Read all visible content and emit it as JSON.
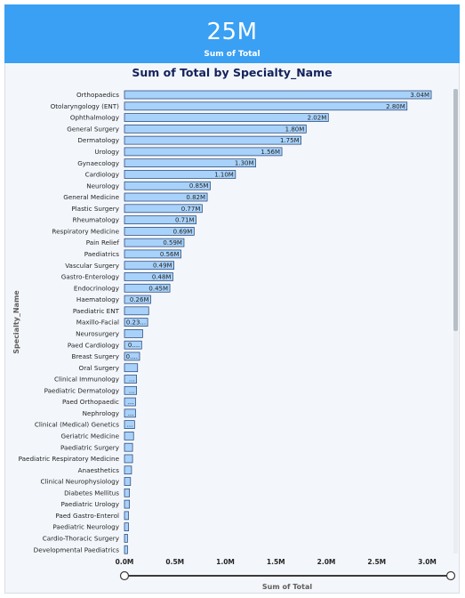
{
  "kpi": {
    "value": "25M",
    "label": "Sum of Total"
  },
  "colors": {
    "kpi_bg": "#3aa0f3",
    "bar_fill": "#a8d2fa",
    "bar_stroke": "#1f3b6e",
    "title": "#14225a"
  },
  "chart_data": {
    "type": "bar",
    "orientation": "horizontal",
    "title": "Sum of Total by Specialty_Name",
    "xlabel": "Sum of Total",
    "ylabel": "Specialty_Name",
    "xlim": [
      0,
      3.2
    ],
    "x_ticks": [
      "0.0M",
      "0.5M",
      "1.0M",
      "1.5M",
      "2.0M",
      "2.5M",
      "3.0M"
    ],
    "grid": false,
    "categories": [
      "Orthopaedics",
      "Otolaryngology (ENT)",
      "Ophthalmology",
      "General Surgery",
      "Dermatology",
      "Urology",
      "Gynaecology",
      "Cardiology",
      "Neurology",
      "General Medicine",
      "Plastic Surgery",
      "Rheumatology",
      "Respiratory Medicine",
      "Pain Relief",
      "Paediatrics",
      "Vascular Surgery",
      "Gastro-Enterology",
      "Endocrinology",
      "Haematology",
      "Paediatric ENT",
      "Maxillo-Facial",
      "Neurosurgery",
      "Paed Cardiology",
      "Breast Surgery",
      "Oral Surgery",
      "Clinical Immunology",
      "Paediatric Dermatology",
      "Paed Orthopaedic",
      "Nephrology",
      "Clinical (Medical) Genetics",
      "Geriatric Medicine",
      "Paediatric Surgery",
      "Paediatric Respiratory Medicine",
      "Anaesthetics",
      "Clinical Neurophysiology",
      "Diabetes Mellitus",
      "Paediatric Urology",
      "Paed Gastro-Enterol",
      "Paediatric Neurology",
      "Cardio-Thoracic Surgery",
      "Developmental Paediatrics"
    ],
    "values": [
      3.04,
      2.8,
      2.02,
      1.8,
      1.75,
      1.56,
      1.3,
      1.1,
      0.85,
      0.82,
      0.77,
      0.71,
      0.69,
      0.59,
      0.56,
      0.49,
      0.48,
      0.45,
      0.26,
      0.24,
      0.23,
      0.18,
      0.17,
      0.15,
      0.13,
      0.12,
      0.12,
      0.11,
      0.11,
      0.1,
      0.09,
      0.08,
      0.08,
      0.07,
      0.06,
      0.05,
      0.05,
      0.04,
      0.04,
      0.03,
      0.03
    ],
    "data_labels": [
      "3.04M",
      "2.80M",
      "2.02M",
      "1.80M",
      "1.75M",
      "1.56M",
      "1.30M",
      "1.10M",
      "0.85M",
      "0.82M",
      "0.77M",
      "0.71M",
      "0.69M",
      "0.59M",
      "0.56M",
      "0.49M",
      "0.48M",
      "0.45M",
      "0.26M",
      "",
      "0.23...",
      "",
      "0....",
      "0....",
      "",
      "...",
      "...",
      "...",
      "...",
      "...",
      "",
      "",
      "",
      "",
      "",
      "",
      "",
      "",
      "",
      "",
      ""
    ]
  }
}
